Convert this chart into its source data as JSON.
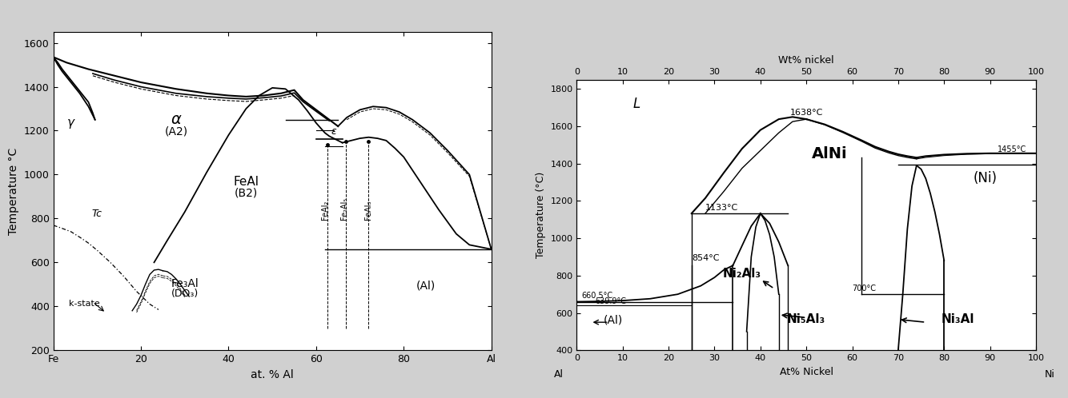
{
  "fig_width": 13.34,
  "fig_height": 4.98,
  "background": "#d0d0d0",
  "panel_a": {
    "xlabel": "at. % Al",
    "ylabel": "Temperature °C",
    "xlim": [
      0,
      100
    ],
    "ylim": [
      200,
      1650
    ],
    "xticks": [
      0,
      20,
      40,
      60,
      80,
      100
    ],
    "xticklabels": [
      "Fe",
      "20",
      "40",
      "60",
      "80",
      "Al"
    ],
    "yticks": [
      200,
      400,
      600,
      800,
      1000,
      1200,
      1400,
      1600
    ]
  },
  "panel_b": {
    "xlabel": "At% Nickel",
    "xlabel2": "Wt% nickel",
    "ylabel": "Temperature (°C)",
    "xlim": [
      0,
      100
    ],
    "ylim": [
      400,
      1850
    ],
    "xticks": [
      0,
      10,
      20,
      30,
      40,
      50,
      60,
      70,
      80,
      90,
      100
    ],
    "xticklabels": [
      "0",
      "10",
      "20",
      "30",
      "40",
      "50",
      "60",
      "70",
      "80",
      "90",
      "100"
    ],
    "yticks": [
      400,
      600,
      800,
      1000,
      1200,
      1400,
      1600,
      1800
    ]
  }
}
